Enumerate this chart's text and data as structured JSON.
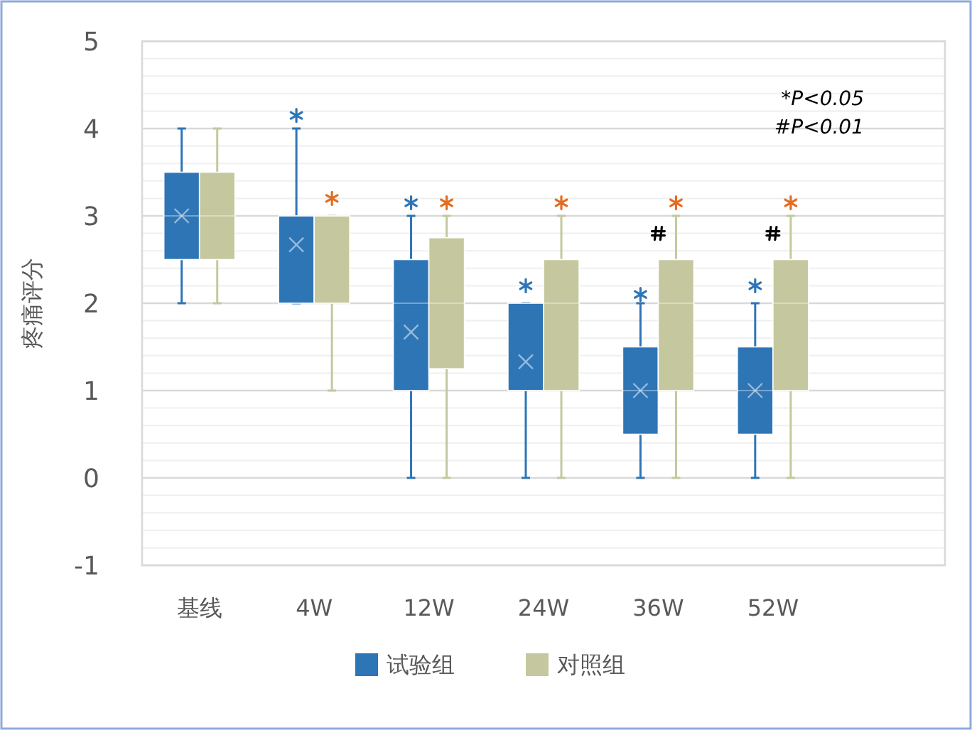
{
  "chart_data": {
    "type": "box",
    "ylabel": "疼痛评分",
    "categories": [
      "基线",
      "4W",
      "12W",
      "24W",
      "36W",
      "52W"
    ],
    "ylim": [
      -1,
      5
    ],
    "yticks": [
      -1,
      0,
      1,
      2,
      3,
      4,
      5
    ],
    "grid": true,
    "legend": "bottom",
    "series": [
      {
        "name": "试验组",
        "color": "#2e75b6",
        "boxes": [
          {
            "low": 2,
            "q1": 2.5,
            "median": 3,
            "q3": 3.5,
            "high": 4,
            "mean": 3
          },
          {
            "low": 2,
            "q1": 2,
            "median": 3,
            "q3": 3,
            "high": 4,
            "mean": 2.67
          },
          {
            "low": 0,
            "q1": 1,
            "median": 2,
            "q3": 2.5,
            "high": 3,
            "mean": 1.67
          },
          {
            "low": 0,
            "q1": 1,
            "median": 1,
            "q3": 2,
            "high": 2,
            "mean": 1.33
          },
          {
            "low": 0,
            "q1": 0.5,
            "median": 1,
            "q3": 1.5,
            "high": 2,
            "mean": 1
          },
          {
            "low": 0,
            "q1": 0.5,
            "median": 1,
            "q3": 1.5,
            "high": 2,
            "mean": 1
          }
        ]
      },
      {
        "name": "对照组",
        "color": "#c5c89e",
        "boxes": [
          {
            "low": 2,
            "q1": 2.5,
            "median": 3,
            "q3": 3.5,
            "high": 4
          },
          {
            "low": 1,
            "q1": 2,
            "median": 3,
            "q3": 3,
            "high": 3
          },
          {
            "low": 0,
            "q1": 1.25,
            "median": 2,
            "q3": 2.75,
            "high": 3
          },
          {
            "low": 0,
            "q1": 1,
            "median": 2,
            "q3": 2.5,
            "high": 3
          },
          {
            "low": 0,
            "q1": 1,
            "median": 2,
            "q3": 2.5,
            "high": 3
          },
          {
            "low": 0,
            "q1": 1,
            "median": 2,
            "q3": 2.5,
            "high": 3
          }
        ]
      },
      {
        "type": "scatter",
        "marker": "cross",
        "color": "#2e75b6",
        "x": [
          "4W",
          "12W",
          "24W",
          "36W",
          "52W"
        ],
        "values": [
          4.15,
          3.15,
          2.2,
          2.1,
          2.2
        ]
      },
      {
        "type": "scatter",
        "marker": "cross",
        "color": "#000000",
        "x": [
          "36W",
          "52W"
        ],
        "values": [
          2.8,
          2.8
        ]
      },
      {
        "type": "scatter",
        "marker": "cross",
        "color": "#e36c21",
        "x": [
          "4W",
          "12W",
          "24W",
          "36W",
          "52W"
        ],
        "values": [
          3.2,
          3.15,
          3.15,
          3.15,
          3.15
        ]
      }
    ],
    "annotations": [
      "*P<0.05",
      "#P<0.01"
    ]
  }
}
